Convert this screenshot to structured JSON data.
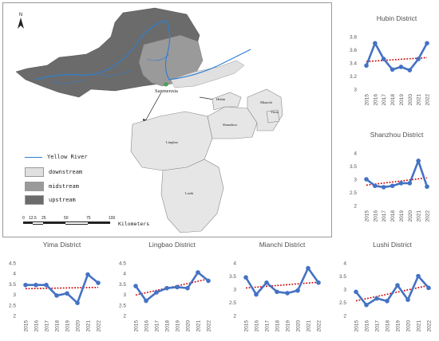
{
  "map": {
    "north_label": "N",
    "city_label": "Sanmenxia",
    "districts": {
      "hubin": "Hubin",
      "mianchi": "Mianchi",
      "yima": "Yima",
      "shanzhou": "Shanzhou",
      "lingbao": "Lingbao",
      "lushi": "Lushi"
    },
    "legend": [
      {
        "label": "Yellow River",
        "kind": "line",
        "color": "#2f7fd0"
      },
      {
        "label": "downstream",
        "kind": "fill",
        "color": "#e0e0e0"
      },
      {
        "label": "midstream",
        "kind": "fill",
        "color": "#9a9a9a"
      },
      {
        "label": "upstream",
        "kind": "fill",
        "color": "#6b6b6b"
      }
    ],
    "scale": {
      "ticks": [
        "0",
        "12.5",
        "25",
        "50",
        "75",
        "100"
      ],
      "unit": "Kilometers"
    }
  },
  "chart_data": [
    {
      "type": "line",
      "title": "Hubin District",
      "x": [
        "2015",
        "2016",
        "2017",
        "2018",
        "2019",
        "2020",
        "2021",
        "2022"
      ],
      "y": [
        3.36,
        3.7,
        3.46,
        3.3,
        3.34,
        3.29,
        3.46,
        3.7
      ],
      "ylim": [
        3,
        3.8
      ],
      "yticks": [
        "3",
        "3.2",
        "3.4",
        "3.6",
        "3.8"
      ],
      "trend": "linear",
      "color": "#4472c4",
      "trend_color": "#cc0000"
    },
    {
      "type": "line",
      "title": "Shanzhou District",
      "x": [
        "2015",
        "2016",
        "2017",
        "2018",
        "2019",
        "2020",
        "2021",
        "2022"
      ],
      "y": [
        3.0,
        2.75,
        2.7,
        2.75,
        2.85,
        2.85,
        3.7,
        2.72
      ],
      "ylim": [
        2,
        4
      ],
      "yticks": [
        "2",
        "2.5",
        "3",
        "3.5",
        "4"
      ],
      "trend": "linear",
      "color": "#4472c4",
      "trend_color": "#cc0000"
    },
    {
      "type": "line",
      "title": "Yima District",
      "x": [
        "2015",
        "2016",
        "2017",
        "2018",
        "2019",
        "2020",
        "2021",
        "2022"
      ],
      "y": [
        3.45,
        3.45,
        3.45,
        2.95,
        3.05,
        2.6,
        3.95,
        3.55
      ],
      "ylim": [
        2,
        4.5
      ],
      "yticks": [
        "2",
        "2.5",
        "3",
        "3.5",
        "4",
        "4.5"
      ],
      "trend": "linear",
      "color": "#4472c4",
      "trend_color": "#cc0000"
    },
    {
      "type": "line",
      "title": "Lingbao District",
      "x": [
        "2015",
        "2016",
        "2017",
        "2018",
        "2019",
        "2020",
        "2021",
        "2022"
      ],
      "y": [
        3.4,
        2.7,
        3.1,
        3.3,
        3.35,
        3.3,
        4.05,
        3.65
      ],
      "ylim": [
        2,
        4.5
      ],
      "yticks": [
        "2",
        "2.5",
        "3",
        "3.5",
        "4",
        "4.5"
      ],
      "trend": "linear",
      "color": "#4472c4",
      "trend_color": "#cc0000"
    },
    {
      "type": "line",
      "title": "Mianchi District",
      "x": [
        "2015",
        "2016",
        "2017",
        "2018",
        "2019",
        "2020",
        "2021",
        "2022"
      ],
      "y": [
        3.45,
        2.8,
        3.25,
        2.9,
        2.85,
        2.95,
        3.8,
        3.25
      ],
      "ylim": [
        2,
        4
      ],
      "yticks": [
        "2",
        "2.5",
        "3",
        "3.5",
        "4"
      ],
      "trend": "linear",
      "color": "#4472c4",
      "trend_color": "#cc0000"
    },
    {
      "type": "line",
      "title": "Lushi District",
      "x": [
        "2015",
        "2016",
        "2017",
        "2018",
        "2019",
        "2020",
        "2021",
        "2022"
      ],
      "y": [
        2.9,
        2.4,
        2.65,
        2.55,
        3.15,
        2.6,
        3.5,
        3.05
      ],
      "ylim": [
        2,
        4
      ],
      "yticks": [
        "2",
        "2.5",
        "3",
        "3.5",
        "4"
      ],
      "trend": "linear",
      "color": "#4472c4",
      "trend_color": "#cc0000"
    }
  ]
}
